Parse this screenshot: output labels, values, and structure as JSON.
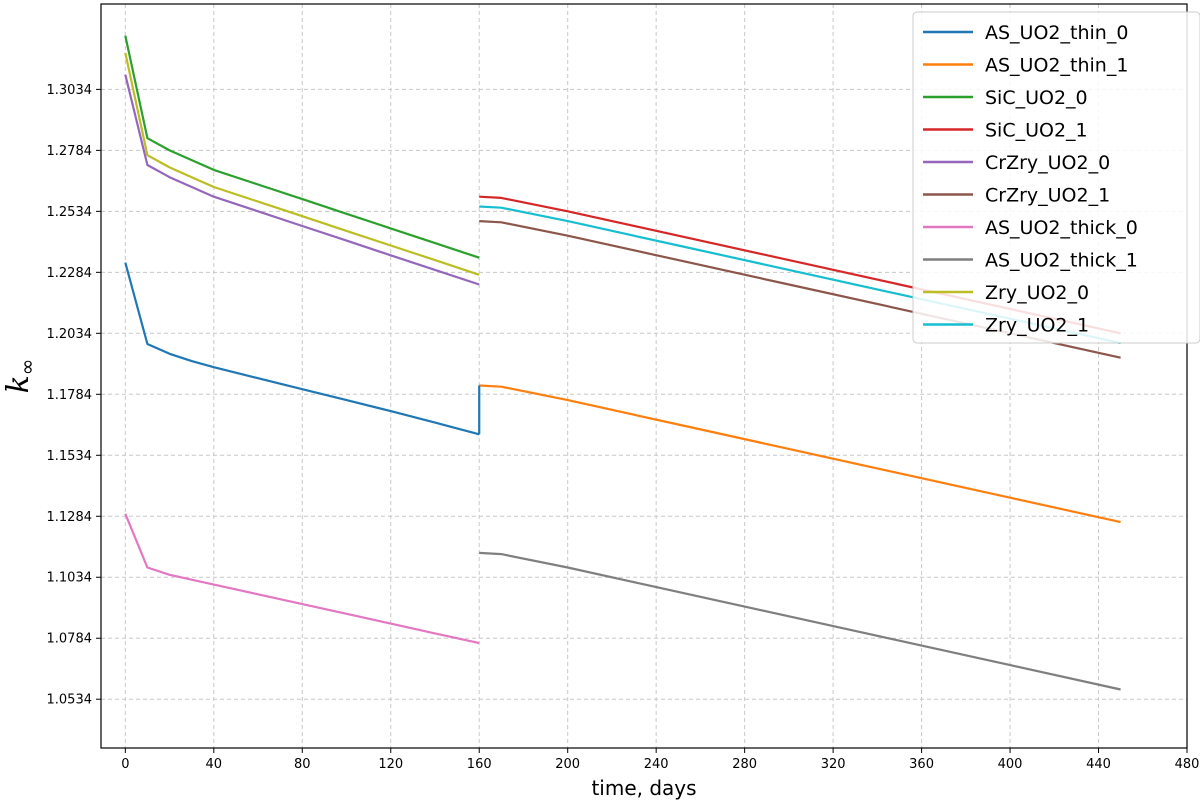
{
  "chart_data": {
    "type": "line",
    "xlabel": "time, days",
    "ylabel": "k",
    "ylabel_subscript": "∞",
    "xlim": [
      -11,
      480
    ],
    "ylim": [
      1.0334,
      1.3384
    ],
    "xticks": [
      0,
      40,
      80,
      120,
      160,
      200,
      240,
      280,
      320,
      360,
      400,
      440,
      480
    ],
    "yticks": [
      1.0534,
      1.0784,
      1.1034,
      1.1284,
      1.1534,
      1.1784,
      1.2034,
      1.2284,
      1.2534,
      1.2784,
      1.3034
    ],
    "ytick_labels": [
      "1.0534",
      "1.0784",
      "1.1034",
      "1.1284",
      "1.1534",
      "1.1784",
      "1.2034",
      "1.2284",
      "1.2534",
      "1.2784",
      "1.3034"
    ],
    "grid": true,
    "legend_position": "top-right",
    "series": [
      {
        "name": "AS_UO2_thin_0",
        "color": "#1f77b4",
        "x": [
          0,
          10,
          20,
          30,
          40,
          60,
          80,
          100,
          120,
          140,
          160
        ],
        "y": [
          1.2324,
          1.199,
          1.195,
          1.192,
          1.1895,
          1.185,
          1.1805,
          1.176,
          1.1715,
          1.1668,
          1.162
        ]
      },
      {
        "name": "AS_UO2_thin_1",
        "color": "#ff7f0e",
        "x": [
          160,
          170,
          200,
          250,
          300,
          350,
          400,
          450
        ],
        "y": [
          1.182,
          1.1815,
          1.176,
          1.166,
          1.156,
          1.146,
          1.136,
          1.126
        ]
      },
      {
        "name": "SiC_UO2_0",
        "color": "#2ca02c",
        "x": [
          0,
          10,
          20,
          30,
          40,
          60,
          80,
          100,
          120,
          140,
          160
        ],
        "y": [
          1.3254,
          1.2834,
          1.2784,
          1.2744,
          1.2704,
          1.2644,
          1.2584,
          1.2524,
          1.2464,
          1.2404,
          1.2344
        ]
      },
      {
        "name": "SiC_UO2_1",
        "color": "#d62728",
        "x": [
          160,
          170,
          200,
          250,
          300,
          350,
          400,
          450
        ],
        "y": [
          1.2594,
          1.2589,
          1.2534,
          1.2434,
          1.2334,
          1.2234,
          1.2134,
          1.2034
        ]
      },
      {
        "name": "CrZry_UO2_0",
        "color": "#9467bd",
        "x": [
          0,
          10,
          20,
          30,
          40,
          60,
          80,
          100,
          120,
          140,
          160
        ],
        "y": [
          1.3094,
          1.2724,
          1.2674,
          1.2634,
          1.2594,
          1.2534,
          1.2474,
          1.2414,
          1.2354,
          1.2294,
          1.2234
        ]
      },
      {
        "name": "CrZry_UO2_1",
        "color": "#8c564b",
        "x": [
          160,
          170,
          200,
          250,
          300,
          350,
          400,
          450
        ],
        "y": [
          1.2494,
          1.2489,
          1.2434,
          1.2334,
          1.2234,
          1.2134,
          1.2034,
          1.1934
        ]
      },
      {
        "name": "AS_UO2_thick_0",
        "color": "#e377c2",
        "x": [
          0,
          10,
          20,
          30,
          40,
          60,
          80,
          100,
          120,
          140,
          160
        ],
        "y": [
          1.1294,
          1.1074,
          1.1044,
          1.1024,
          1.1004,
          1.0964,
          1.0924,
          1.0884,
          1.0844,
          1.0804,
          1.0764
        ]
      },
      {
        "name": "AS_UO2_thick_1",
        "color": "#7f7f7f",
        "x": [
          160,
          170,
          200,
          250,
          300,
          350,
          400,
          450
        ],
        "y": [
          1.1134,
          1.1129,
          1.1074,
          1.0974,
          1.0874,
          1.0774,
          1.0674,
          1.0574
        ]
      },
      {
        "name": "Zry_UO2_0",
        "color": "#bcbd22",
        "x": [
          0,
          10,
          20,
          30,
          40,
          60,
          80,
          100,
          120,
          140,
          160
        ],
        "y": [
          1.3184,
          1.2764,
          1.2714,
          1.2674,
          1.2634,
          1.2574,
          1.2514,
          1.2454,
          1.2394,
          1.2334,
          1.2274
        ]
      },
      {
        "name": "Zry_UO2_1",
        "color": "#17becf",
        "x": [
          160,
          170,
          200,
          250,
          300,
          350,
          400,
          450
        ],
        "y": [
          1.2554,
          1.2549,
          1.2494,
          1.2394,
          1.2294,
          1.2194,
          1.2094,
          1.1994
        ]
      }
    ]
  }
}
